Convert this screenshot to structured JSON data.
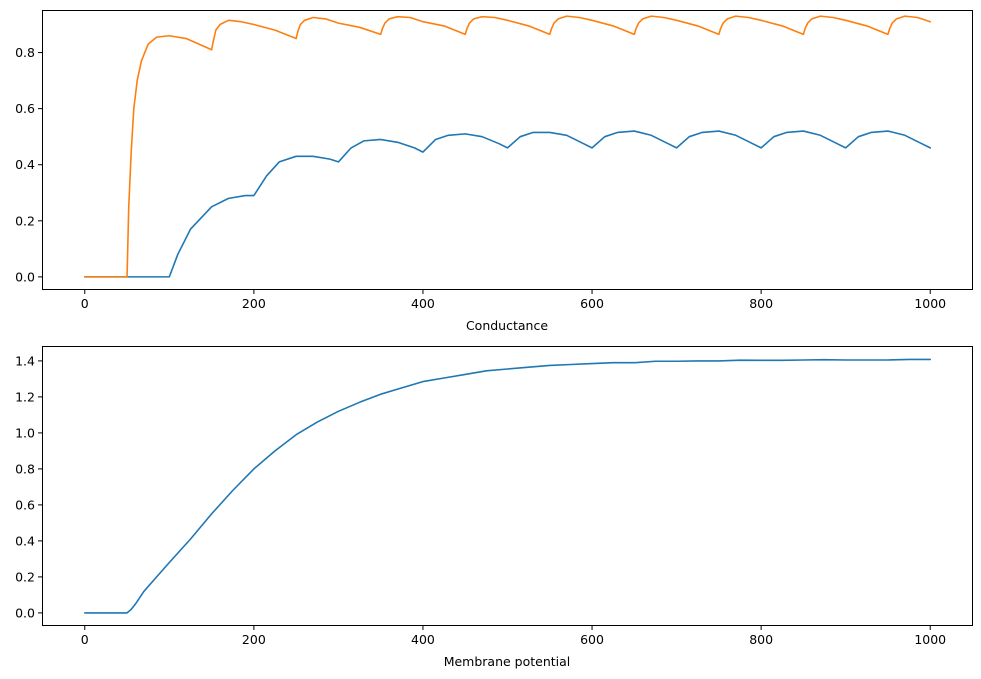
{
  "chart_data": [
    {
      "type": "line",
      "title": "",
      "xlabel": "Conductance",
      "ylabel": "",
      "xlim": [
        -50,
        1050
      ],
      "ylim": [
        -0.045,
        0.95
      ],
      "xticks": [
        0,
        200,
        400,
        600,
        800,
        1000
      ],
      "xtick_labels": [
        "0",
        "200",
        "400",
        "600",
        "800",
        "1000"
      ],
      "yticks": [
        0.0,
        0.2,
        0.4,
        0.6,
        0.8
      ],
      "ytick_labels": [
        "0.0",
        "0.2",
        "0.4",
        "0.6",
        "0.8"
      ],
      "grid": false,
      "legend": "none",
      "series": [
        {
          "color": "#1f77b4",
          "x": [
            0,
            100,
            110,
            125,
            150,
            170,
            190,
            200,
            215,
            230,
            250,
            270,
            290,
            300,
            315,
            330,
            350,
            370,
            390,
            400,
            415,
            430,
            450,
            470,
            490,
            500,
            515,
            530,
            550,
            570,
            590,
            600,
            615,
            630,
            650,
            670,
            690,
            700,
            715,
            730,
            750,
            770,
            790,
            800,
            815,
            830,
            850,
            870,
            890,
            900,
            915,
            930,
            950,
            970,
            990,
            1000
          ],
          "y": [
            0.0,
            0.0,
            0.08,
            0.17,
            0.25,
            0.28,
            0.29,
            0.29,
            0.36,
            0.41,
            0.43,
            0.43,
            0.42,
            0.41,
            0.46,
            0.485,
            0.49,
            0.48,
            0.46,
            0.445,
            0.49,
            0.505,
            0.51,
            0.5,
            0.475,
            0.46,
            0.5,
            0.515,
            0.515,
            0.505,
            0.475,
            0.46,
            0.5,
            0.515,
            0.52,
            0.505,
            0.475,
            0.46,
            0.5,
            0.515,
            0.52,
            0.505,
            0.475,
            0.46,
            0.5,
            0.515,
            0.52,
            0.505,
            0.475,
            0.46,
            0.5,
            0.515,
            0.52,
            0.505,
            0.475,
            0.46
          ]
        },
        {
          "color": "#ff7f0e",
          "x": [
            0,
            50,
            52,
            55,
            58,
            62,
            67,
            75,
            85,
            100,
            120,
            150,
            152,
            155,
            160,
            170,
            185,
            200,
            225,
            250,
            252,
            255,
            260,
            270,
            285,
            300,
            325,
            350,
            352,
            355,
            360,
            370,
            385,
            400,
            425,
            450,
            452,
            455,
            460,
            470,
            485,
            500,
            525,
            550,
            552,
            555,
            560,
            570,
            585,
            600,
            625,
            650,
            652,
            655,
            660,
            670,
            685,
            700,
            725,
            750,
            752,
            755,
            760,
            770,
            785,
            800,
            825,
            850,
            852,
            855,
            860,
            870,
            885,
            900,
            925,
            950,
            952,
            955,
            960,
            970,
            985,
            1000
          ],
          "y": [
            0.0,
            0.0,
            0.25,
            0.45,
            0.6,
            0.7,
            0.77,
            0.83,
            0.855,
            0.86,
            0.85,
            0.81,
            0.84,
            0.88,
            0.9,
            0.915,
            0.91,
            0.9,
            0.88,
            0.85,
            0.875,
            0.9,
            0.915,
            0.925,
            0.92,
            0.905,
            0.89,
            0.865,
            0.885,
            0.905,
            0.92,
            0.928,
            0.925,
            0.91,
            0.895,
            0.865,
            0.885,
            0.905,
            0.92,
            0.928,
            0.925,
            0.915,
            0.895,
            0.865,
            0.885,
            0.905,
            0.92,
            0.93,
            0.925,
            0.915,
            0.895,
            0.865,
            0.885,
            0.905,
            0.92,
            0.93,
            0.925,
            0.915,
            0.895,
            0.865,
            0.885,
            0.905,
            0.92,
            0.93,
            0.925,
            0.915,
            0.895,
            0.865,
            0.885,
            0.905,
            0.92,
            0.93,
            0.925,
            0.915,
            0.895,
            0.865,
            0.885,
            0.905,
            0.92,
            0.93,
            0.925,
            0.91
          ]
        }
      ]
    },
    {
      "type": "line",
      "title": "",
      "xlabel": "Membrane potential",
      "ylabel": "",
      "xlim": [
        -50,
        1050
      ],
      "ylim": [
        -0.07,
        1.48
      ],
      "xticks": [
        0,
        200,
        400,
        600,
        800,
        1000
      ],
      "xtick_labels": [
        "0",
        "200",
        "400",
        "600",
        "800",
        "1000"
      ],
      "yticks": [
        0.0,
        0.2,
        0.4,
        0.6,
        0.8,
        1.0,
        1.2,
        1.4
      ],
      "ytick_labels": [
        "0.0",
        "0.2",
        "0.4",
        "0.6",
        "0.8",
        "1.0",
        "1.2",
        "1.4"
      ],
      "grid": false,
      "legend": "none",
      "series": [
        {
          "color": "#1f77b4",
          "x": [
            0,
            50,
            55,
            60,
            70,
            85,
            100,
            125,
            150,
            175,
            200,
            225,
            250,
            275,
            300,
            325,
            350,
            375,
            400,
            425,
            450,
            475,
            500,
            525,
            550,
            575,
            600,
            625,
            650,
            675,
            700,
            725,
            750,
            775,
            800,
            825,
            850,
            875,
            900,
            925,
            950,
            975,
            1000
          ],
          "y": [
            0.0,
            0.0,
            0.02,
            0.05,
            0.12,
            0.2,
            0.28,
            0.41,
            0.55,
            0.68,
            0.8,
            0.9,
            0.99,
            1.06,
            1.12,
            1.17,
            1.215,
            1.25,
            1.285,
            1.305,
            1.325,
            1.345,
            1.355,
            1.365,
            1.375,
            1.38,
            1.385,
            1.39,
            1.39,
            1.398,
            1.398,
            1.4,
            1.4,
            1.404,
            1.403,
            1.403,
            1.405,
            1.407,
            1.405,
            1.405,
            1.405,
            1.408,
            1.408
          ]
        }
      ]
    }
  ]
}
